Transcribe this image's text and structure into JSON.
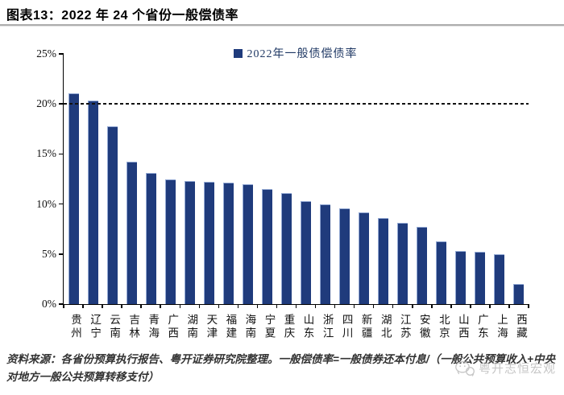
{
  "header": {
    "title": "图表13：2022 年 24 个省份一般偿债率"
  },
  "chart_data": {
    "type": "bar",
    "title": "图表13：2022 年 24 个省份一般偿债率",
    "legend": [
      "2022年一般债偿债率"
    ],
    "categories": [
      "贵州",
      "辽宁",
      "云南",
      "吉林",
      "青海",
      "广西",
      "湖南",
      "天津",
      "福建",
      "海南",
      "宁夏",
      "重庆",
      "山东",
      "浙江",
      "四川",
      "新疆",
      "湖北",
      "江苏",
      "安徽",
      "北京",
      "山西",
      "广东",
      "上海",
      "西藏"
    ],
    "values": [
      21.1,
      20.3,
      17.8,
      14.2,
      13.1,
      12.5,
      12.3,
      12.2,
      12.1,
      12.0,
      11.5,
      11.1,
      10.3,
      10.0,
      9.6,
      9.2,
      8.6,
      8.1,
      7.7,
      6.3,
      5.3,
      5.2,
      5.0,
      2.0
    ],
    "unit": "%",
    "xlabel": "",
    "ylabel": "",
    "ylim": [
      0,
      25
    ],
    "yticks": [
      0,
      5,
      10,
      15,
      20,
      25
    ],
    "ytick_labels": [
      "0%",
      "5%",
      "10%",
      "15%",
      "20%",
      "25%"
    ],
    "reference_line": {
      "value": 20,
      "style": "dashed",
      "color": "#111111"
    },
    "bar_color": "#1f3b7c",
    "grid": false,
    "legend_position": "top-center"
  },
  "footer": {
    "source": "资料来源：各省份预算执行报告、粤开证券研究院整理。一般偿债率=一般债券还本付息/（一般公共预算收入+中央对地方一般公共预算转移支付）",
    "watermark": "粤开志恒宏观"
  },
  "colors": {
    "bar": "#1f3b7c",
    "bar_highlight": "#93a9d4",
    "legend_text": "#1f3864",
    "axis": "#000000",
    "source_text": "#333333",
    "watermark": "#c6c6c6",
    "title_rule": "#aeaeae"
  }
}
